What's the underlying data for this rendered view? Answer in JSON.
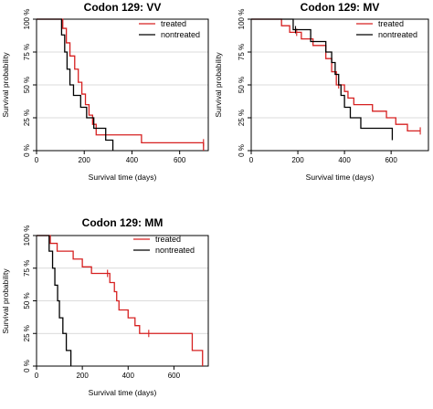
{
  "chart_data": [
    {
      "type": "line",
      "title": "Codon 129: VV",
      "xlabel": "Survival time (days)",
      "ylabel": "Survival probability",
      "xlim": [
        0,
        720
      ],
      "ylim": [
        0,
        1
      ],
      "x_ticks": [
        "0",
        "200",
        "400",
        "600"
      ],
      "y_ticks": [
        "0 %",
        "25 %",
        "50 %",
        "75 %",
        "100 %"
      ],
      "grid": true,
      "legend": {
        "position": "top-right",
        "entries": [
          "treated",
          "nontreated"
        ]
      },
      "series": [
        {
          "name": "treated",
          "color": "#d62020",
          "steps": [
            [
              0,
              1.0
            ],
            [
              110,
              0.93
            ],
            [
              125,
              0.82
            ],
            [
              140,
              0.72
            ],
            [
              160,
              0.62
            ],
            [
              175,
              0.52
            ],
            [
              190,
              0.43
            ],
            [
              205,
              0.35
            ],
            [
              220,
              0.27
            ],
            [
              235,
              0.2
            ],
            [
              250,
              0.12
            ],
            [
              440,
              0.06
            ],
            [
              700,
              0.0
            ]
          ],
          "censored": [
            [
              700,
              0.06
            ]
          ]
        },
        {
          "name": "nontreated",
          "color": "#000000",
          "steps": [
            [
              0,
              1.0
            ],
            [
              105,
              0.88
            ],
            [
              118,
              0.75
            ],
            [
              128,
              0.62
            ],
            [
              140,
              0.5
            ],
            [
              155,
              0.42
            ],
            [
              185,
              0.33
            ],
            [
              210,
              0.25
            ],
            [
              240,
              0.17
            ],
            [
              290,
              0.08
            ],
            [
              320,
              0.0
            ]
          ],
          "censored": []
        }
      ]
    },
    {
      "type": "line",
      "title": "Codon 129: MV",
      "xlabel": "Survival time (days)",
      "ylabel": "Survival probability",
      "xlim": [
        0,
        760
      ],
      "ylim": [
        0,
        1
      ],
      "x_ticks": [
        "0",
        "200",
        "400",
        "600"
      ],
      "y_ticks": [
        "0 %",
        "25 %",
        "50 %",
        "75 %",
        "100 %"
      ],
      "grid": true,
      "legend": {
        "position": "top-right",
        "entries": [
          "treated",
          "nontreated"
        ]
      },
      "series": [
        {
          "name": "treated",
          "color": "#d62020",
          "steps": [
            [
              0,
              1.0
            ],
            [
              130,
              0.95
            ],
            [
              165,
              0.9
            ],
            [
              215,
              0.85
            ],
            [
              265,
              0.8
            ],
            [
              320,
              0.7
            ],
            [
              345,
              0.6
            ],
            [
              365,
              0.5
            ],
            [
              400,
              0.45
            ],
            [
              415,
              0.4
            ],
            [
              440,
              0.35
            ],
            [
              520,
              0.3
            ],
            [
              580,
              0.25
            ],
            [
              620,
              0.2
            ],
            [
              670,
              0.15
            ]
          ],
          "censored": [
            [
              195,
              0.9
            ],
            [
              375,
              0.5
            ],
            [
              725,
              0.15
            ]
          ]
        },
        {
          "name": "nontreated",
          "color": "#000000",
          "steps": [
            [
              0,
              1.0
            ],
            [
              180,
              0.92
            ],
            [
              255,
              0.83
            ],
            [
              320,
              0.75
            ],
            [
              345,
              0.67
            ],
            [
              360,
              0.58
            ],
            [
              375,
              0.5
            ],
            [
              385,
              0.42
            ],
            [
              400,
              0.33
            ],
            [
              425,
              0.25
            ],
            [
              470,
              0.17
            ],
            [
              605,
              0.08
            ]
          ],
          "censored": [
            [
              190,
              0.92
            ]
          ]
        }
      ]
    },
    {
      "type": "line",
      "title": "Codon 129: MM",
      "xlabel": "Survival time (days)",
      "ylabel": "Survival probability",
      "xlim": [
        0,
        750
      ],
      "ylim": [
        0,
        1
      ],
      "x_ticks": [
        "0",
        "200",
        "400",
        "600"
      ],
      "y_ticks": [
        "0 %",
        "25 %",
        "50 %",
        "75 %",
        "100 %"
      ],
      "grid": true,
      "legend": {
        "position": "top-right",
        "entries": [
          "treated",
          "nontreated"
        ]
      },
      "series": [
        {
          "name": "treated",
          "color": "#d62020",
          "steps": [
            [
              0,
              1.0
            ],
            [
              60,
              0.94
            ],
            [
              90,
              0.88
            ],
            [
              160,
              0.82
            ],
            [
              200,
              0.76
            ],
            [
              240,
              0.71
            ],
            [
              320,
              0.64
            ],
            [
              340,
              0.57
            ],
            [
              350,
              0.5
            ],
            [
              360,
              0.43
            ],
            [
              400,
              0.37
            ],
            [
              430,
              0.31
            ],
            [
              450,
              0.25
            ],
            [
              680,
              0.12
            ],
            [
              725,
              0.0
            ]
          ],
          "censored": [
            [
              310,
              0.71
            ],
            [
              490,
              0.25
            ]
          ]
        },
        {
          "name": "nontreated",
          "color": "#000000",
          "steps": [
            [
              0,
              1.0
            ],
            [
              55,
              0.88
            ],
            [
              70,
              0.75
            ],
            [
              80,
              0.62
            ],
            [
              92,
              0.5
            ],
            [
              100,
              0.37
            ],
            [
              115,
              0.25
            ],
            [
              130,
              0.12
            ],
            [
              150,
              0.0
            ]
          ],
          "censored": []
        }
      ]
    }
  ]
}
